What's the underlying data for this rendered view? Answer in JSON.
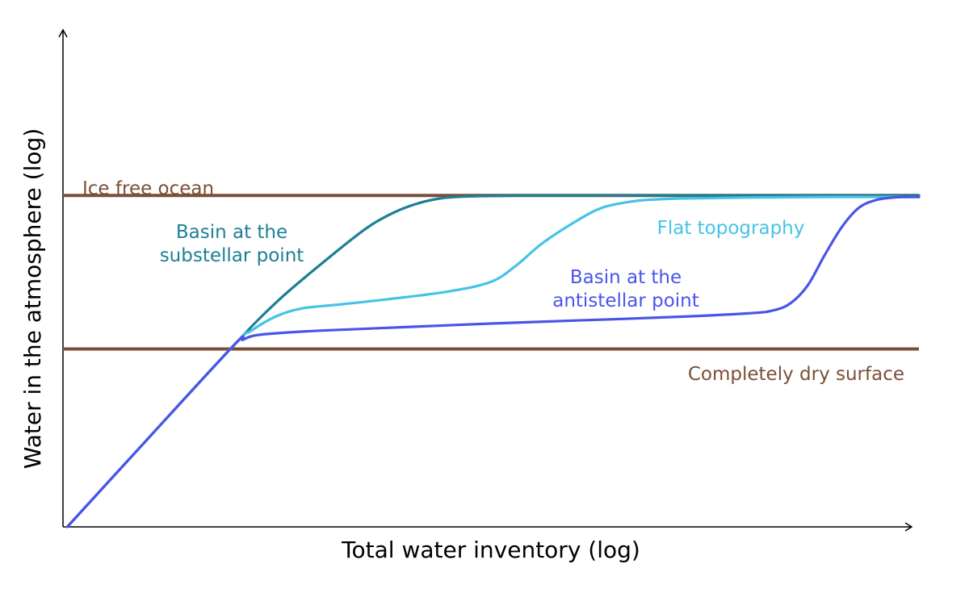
{
  "chart_data": {
    "type": "line",
    "xlabel": "Total water inventory (log)",
    "ylabel": "Water in the atmosphere (log)",
    "xlim": [
      0,
      100
    ],
    "ylim": [
      0,
      100
    ],
    "grid": false,
    "reference_lines": [
      {
        "label": "Ice free ocean",
        "y": 65.2,
        "color": "#7a4f38"
      },
      {
        "label": "Completely dry surface",
        "y": 35.0,
        "color": "#7a4f38"
      }
    ],
    "series": [
      {
        "name": "Basin at the substellar point",
        "color": "#1d7f94",
        "x": [
          0.5,
          10,
          20,
          25,
          30,
          35,
          38,
          41,
          44,
          47,
          50,
          55,
          60,
          70,
          80,
          90,
          100
        ],
        "y": [
          0,
          17.5,
          35.8,
          44.3,
          51.5,
          58.2,
          61.3,
          63.4,
          64.6,
          65.0,
          65.1,
          65.2,
          65.2,
          65.2,
          65.2,
          65.2,
          65.2
        ]
      },
      {
        "name": "Flat topography",
        "color": "#45c3e6",
        "x": [
          0.5,
          10,
          20,
          22,
          25,
          28,
          32,
          38,
          45,
          50,
          53,
          56,
          60,
          63,
          66,
          68,
          72,
          80,
          90,
          100
        ],
        "y": [
          0,
          17.5,
          35.8,
          38.6,
          41.5,
          43.0,
          43.7,
          44.8,
          46.3,
          48.2,
          51.5,
          55.8,
          60.2,
          62.8,
          63.9,
          64.3,
          64.6,
          64.8,
          64.9,
          64.9
        ]
      },
      {
        "name": "Basin at the antistellar point",
        "color": "#4a55e8",
        "x": [
          0.5,
          10,
          20,
          21,
          22,
          23,
          25,
          30,
          40,
          50,
          60,
          70,
          80,
          83,
          85,
          87,
          89,
          91,
          93,
          95,
          97,
          98.5,
          100
        ],
        "y": [
          0,
          17.5,
          35.8,
          36.8,
          37.5,
          37.8,
          38.1,
          38.6,
          39.3,
          40.0,
          40.6,
          41.2,
          42.0,
          42.6,
          44.0,
          47.5,
          53.5,
          59.0,
          62.8,
          64.3,
          64.8,
          64.9,
          64.9
        ]
      }
    ],
    "annotations": [
      {
        "lines": [
          "Ice free ocean"
        ],
        "color": "#7a4f38"
      },
      {
        "lines": [
          "Completely dry surface"
        ],
        "color": "#7a4f38"
      },
      {
        "lines": [
          "Basin at the",
          "substellar point"
        ],
        "color": "#1d7f94"
      },
      {
        "lines": [
          "Flat topography"
        ],
        "color": "#45c3e6"
      },
      {
        "lines": [
          "Basin at the",
          "antistellar point"
        ],
        "color": "#4a55e8"
      }
    ]
  }
}
